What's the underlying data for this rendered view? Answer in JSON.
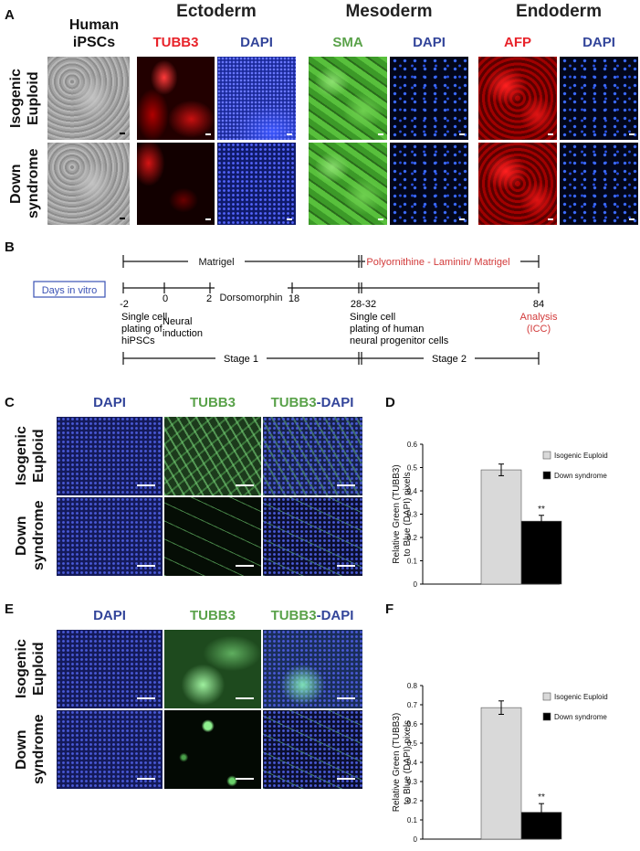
{
  "panel_a": {
    "letter": "A",
    "column_title": [
      "Human",
      "iPSCs"
    ],
    "germ_layers": [
      "Ectoderm",
      "Mesoderm",
      "Endoderm"
    ],
    "stains": [
      {
        "label": "TUBB3",
        "color": "#e8232a"
      },
      {
        "label": "DAPI",
        "color": "#33459a"
      },
      {
        "label": "SMA",
        "color": "#5aa24a"
      },
      {
        "label": "DAPI",
        "color": "#33459a"
      },
      {
        "label": "AFP",
        "color": "#e8232a"
      },
      {
        "label": "DAPI",
        "color": "#33459a"
      }
    ],
    "row_labels": [
      [
        "Isogenic",
        "Euploid"
      ],
      [
        "Down",
        "syndrome"
      ]
    ]
  },
  "panel_b": {
    "letter": "B",
    "days_box": "Days in vitro",
    "matrigel": "Matrigel",
    "coating2": "Polyornithine - Laminin/ Matrigel",
    "days": [
      "-2",
      "0",
      "2",
      "18",
      "28-32",
      "84"
    ],
    "dorsomorphin": "Dorsomorphin",
    "events": [
      [
        "Single cell",
        "plating of",
        "hiPSCs"
      ],
      [
        "Neural",
        "induction"
      ],
      [
        "Single cell",
        "plating of human",
        "neural progenitor cells"
      ],
      [
        "Analysis",
        "(ICC)"
      ]
    ],
    "stage1": "Stage 1",
    "stage2": "Stage 2"
  },
  "panel_c": {
    "letter": "C",
    "headers": [
      {
        "parts": [
          {
            "t": "DAPI",
            "c": "#33459a"
          }
        ]
      },
      {
        "parts": [
          {
            "t": "TUBB3",
            "c": "#5aa24a"
          }
        ]
      },
      {
        "parts": [
          {
            "t": "TUBB3",
            "c": "#5aa24a"
          },
          {
            "t": "-DAPI",
            "c": "#33459a"
          }
        ]
      }
    ],
    "row_labels": [
      [
        "Isogenic",
        "Euploid"
      ],
      [
        "Down",
        "syndrome"
      ]
    ]
  },
  "panel_e": {
    "letter": "E",
    "headers": [
      {
        "parts": [
          {
            "t": "DAPI",
            "c": "#33459a"
          }
        ]
      },
      {
        "parts": [
          {
            "t": "TUBB3",
            "c": "#5aa24a"
          }
        ]
      },
      {
        "parts": [
          {
            "t": "TUBB3",
            "c": "#5aa24a"
          },
          {
            "t": "-DAPI",
            "c": "#33459a"
          }
        ]
      }
    ],
    "row_labels": [
      [
        "Isogenic",
        "Euploid"
      ],
      [
        "Down",
        "syndrome"
      ]
    ]
  },
  "chart_data": [
    {
      "panel": "D",
      "type": "bar",
      "categories": [
        "Isogenic Euploid",
        "Down syndrome"
      ],
      "values": [
        0.49,
        0.27
      ],
      "errors": [
        0.025,
        0.025
      ],
      "colors": [
        "#d9d9d9",
        "#000000"
      ],
      "significance": [
        "",
        "**"
      ],
      "ylabel": [
        "Relative Green (TUBB3)",
        "to Blue (DAPI) pixels"
      ],
      "ylim": [
        0,
        0.6
      ],
      "yticks": [
        "0",
        "0.1",
        "0.2",
        "0.3",
        "0.4",
        "0.5",
        "0.6"
      ],
      "legend": [
        "Isogenic Euploid",
        "Down syndrome"
      ],
      "legend_position": "top-right",
      "grid": false
    },
    {
      "panel": "F",
      "type": "bar",
      "categories": [
        "Isogenic Euploid",
        "Down syndrome"
      ],
      "values": [
        0.685,
        0.14
      ],
      "errors": [
        0.035,
        0.045
      ],
      "colors": [
        "#d9d9d9",
        "#000000"
      ],
      "significance": [
        "",
        "**"
      ],
      "ylabel": [
        "Relative Green (TUBB3)",
        "to Blue (DAPI) pixels"
      ],
      "ylim": [
        0,
        0.8
      ],
      "yticks": [
        "0",
        "0.1",
        "0.2",
        "0.3",
        "0.4",
        "0.5",
        "0.6",
        "0.7",
        "0.8"
      ],
      "legend": [
        "Isogenic Euploid",
        "Down syndrome"
      ],
      "legend_position": "top-right",
      "grid": false
    }
  ]
}
